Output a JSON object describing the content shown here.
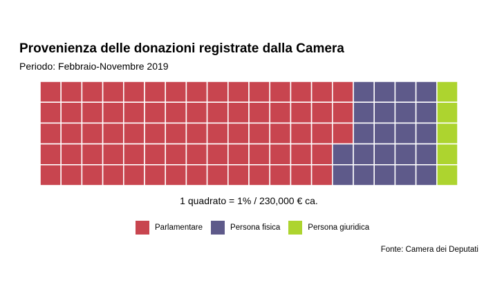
{
  "chart_data": {
    "type": "waffle",
    "title": "Provenienza delle donazioni registrate dalla Camera",
    "subtitle": "Periodo: Febbraio-Novembre 2019",
    "caption": "1 quadrato = 1% / 230,000 € ca.",
    "source": "Fonte: Camera dei Deputati",
    "grid": {
      "rows": 5,
      "columns": 20,
      "fill_order": "column-major, top-to-bottom"
    },
    "series": [
      {
        "name": "Parlamentare",
        "value": 73,
        "color": "#C8454F"
      },
      {
        "name": "Persona fisica",
        "value": 22,
        "color": "#5E5A8A"
      },
      {
        "name": "Persona giuridica",
        "value": 5,
        "color": "#ADD42F"
      }
    ],
    "legend_position": "bottom"
  }
}
